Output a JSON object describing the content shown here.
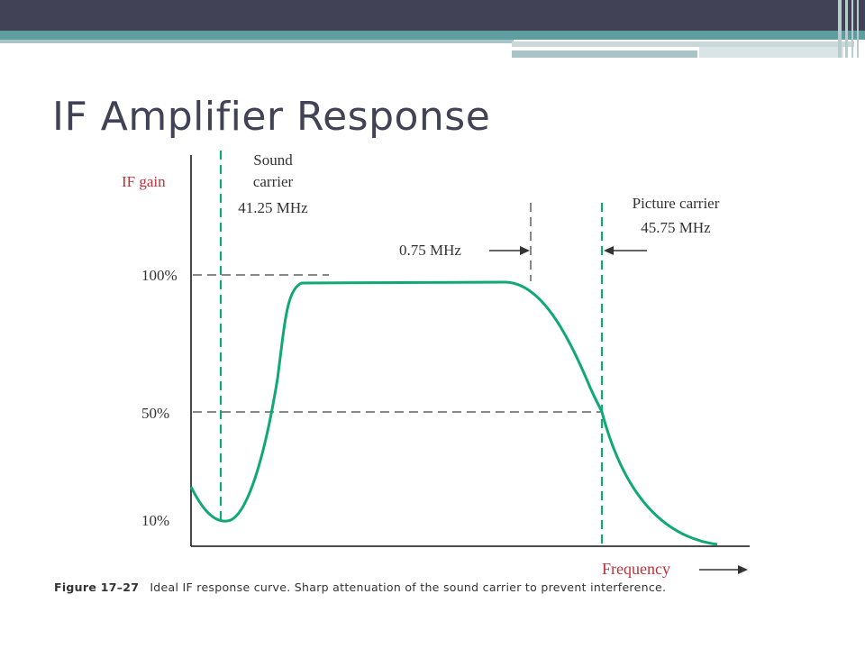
{
  "slide": {
    "title": "IF Amplifier Response",
    "caption_figure": "Figure 17–27",
    "caption_text": "Ideal IF response curve. Sharp attenuation of the sound carrier to prevent interference."
  },
  "colors": {
    "header": "#424257",
    "accent": "#5f9ea0",
    "curve": "#10a875",
    "label_red": "#c0303a",
    "axis": "#333333"
  },
  "chart_data": {
    "type": "line",
    "ylabel": "IF gain",
    "xlabel": "Frequency",
    "y_ticks": [
      {
        "value": 100,
        "label": "100%"
      },
      {
        "value": 50,
        "label": "50%"
      },
      {
        "value": 10,
        "label": "10%"
      }
    ],
    "annotations": {
      "sound_carrier": {
        "label": [
          "Sound",
          "carrier",
          "41.25 MHz"
        ],
        "freq_mhz": 41.25
      },
      "picture_carrier": {
        "label": [
          "Picture carrier",
          "45.75 MHz"
        ],
        "freq_mhz": 45.75
      },
      "bandwidth_marker": {
        "label": "0.75 MHz"
      }
    },
    "series": [
      {
        "values": [
          [
            40.5,
            22
          ],
          [
            41.0,
            12
          ],
          [
            41.25,
            9
          ],
          [
            41.6,
            14
          ],
          [
            42.0,
            40
          ],
          [
            42.25,
            65
          ],
          [
            42.5,
            96
          ],
          [
            42.75,
            97
          ],
          [
            44.0,
            97
          ],
          [
            45.0,
            97
          ],
          [
            45.25,
            90
          ],
          [
            45.5,
            70
          ],
          [
            45.75,
            50
          ],
          [
            46.0,
            30
          ],
          [
            46.5,
            10
          ],
          [
            47.0,
            2
          ],
          [
            47.25,
            0
          ]
        ]
      }
    ]
  }
}
